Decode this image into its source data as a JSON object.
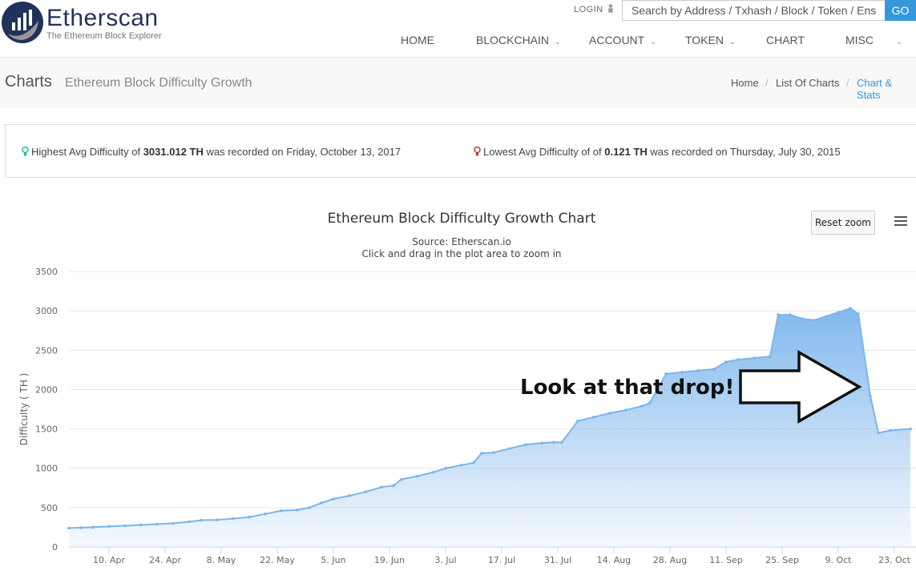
{
  "header": {
    "brand": "Etherscan",
    "tagline": "The Ethereum Block Explorer",
    "login": "LOGIN",
    "search_placeholder": "Search by Address / Txhash / Block / Token / Ens",
    "go": "GO",
    "nav": [
      "HOME",
      "BLOCKCHAIN",
      "ACCOUNT",
      "TOKEN",
      "CHART",
      "MISC"
    ]
  },
  "page": {
    "title": "Charts",
    "subtitle": "Ethereum Block Difficulty Growth",
    "breadcrumb": [
      "Home",
      "List Of Charts",
      "Chart & Stats"
    ]
  },
  "info": {
    "high_prefix": "Highest Avg Difficulty of ",
    "high_value": "3031.012 TH",
    "high_suffix": " was recorded on Friday, October 13, 2017",
    "low_prefix": "Lowest Avg Difficulty of of ",
    "low_value": "0.121 TH",
    "low_suffix": " was recorded on Thursday, July 30, 2015",
    "high_color": "#1abc9c",
    "low_color": "#c0392b"
  },
  "chart_controls": {
    "reset_zoom": "Reset zoom",
    "menu_icon": "hamburger-menu-icon"
  },
  "annotation": {
    "text": "Look at that drop!"
  },
  "colors": {
    "accent": "#3498db",
    "brand": "#21325b",
    "series": "#7cb5ec"
  },
  "chart_data": {
    "type": "area",
    "title": "Ethereum Block Difficulty Growth Chart",
    "subtitle": "Source: Etherscan.io",
    "subtitle2": "Click and drag in the plot area to zoom in",
    "xlabel": "",
    "ylabel": "Difficulty ( TH )",
    "ylim": [
      0,
      3500
    ],
    "yticks": [
      0,
      500,
      1000,
      1500,
      2000,
      2500,
      3000,
      3500
    ],
    "x_ticks": [
      "10. Apr",
      "24. Apr",
      "8. May",
      "22. May",
      "5. Jun",
      "19. Jun",
      "3. Jul",
      "17. Jul",
      "31. Jul",
      "14. Aug",
      "28. Aug",
      "11. Sep",
      "25. Sep",
      "9. Oct",
      "23. Oct"
    ],
    "x_start": "2017-03-31",
    "x_end": "2017-10-27",
    "grid": true,
    "legend": "none",
    "series": [
      {
        "name": "",
        "x": [
          "2017-03-31",
          "2017-04-03",
          "2017-04-06",
          "2017-04-10",
          "2017-04-14",
          "2017-04-18",
          "2017-04-22",
          "2017-04-26",
          "2017-04-30",
          "2017-05-03",
          "2017-05-07",
          "2017-05-11",
          "2017-05-15",
          "2017-05-19",
          "2017-05-23",
          "2017-05-27",
          "2017-05-30",
          "2017-06-02",
          "2017-06-05",
          "2017-06-09",
          "2017-06-13",
          "2017-06-17",
          "2017-06-20",
          "2017-06-22",
          "2017-06-26",
          "2017-06-30",
          "2017-07-03",
          "2017-07-07",
          "2017-07-10",
          "2017-07-12",
          "2017-07-15",
          "2017-07-19",
          "2017-07-23",
          "2017-07-27",
          "2017-07-30",
          "2017-08-01",
          "2017-08-05",
          "2017-08-09",
          "2017-08-13",
          "2017-08-17",
          "2017-08-21",
          "2017-08-23",
          "2017-08-27",
          "2017-08-31",
          "2017-09-04",
          "2017-09-08",
          "2017-09-11",
          "2017-09-14",
          "2017-09-18",
          "2017-09-22",
          "2017-09-24",
          "2017-09-27",
          "2017-09-30",
          "2017-10-03",
          "2017-10-06",
          "2017-10-09",
          "2017-10-12",
          "2017-10-14",
          "2017-10-17",
          "2017-10-19",
          "2017-10-22",
          "2017-10-27"
        ],
        "y": [
          240,
          245,
          250,
          260,
          270,
          280,
          290,
          300,
          320,
          340,
          345,
          360,
          380,
          420,
          460,
          470,
          500,
          560,
          610,
          650,
          700,
          760,
          780,
          860,
          900,
          950,
          1000,
          1040,
          1070,
          1190,
          1200,
          1250,
          1300,
          1320,
          1330,
          1330,
          1600,
          1650,
          1700,
          1740,
          1790,
          1830,
          2200,
          2220,
          2240,
          2260,
          2350,
          2380,
          2400,
          2420,
          2950,
          2950,
          2900,
          2880,
          2930,
          2980,
          3031,
          2960,
          1920,
          1450,
          1480,
          1500
        ]
      }
    ]
  }
}
